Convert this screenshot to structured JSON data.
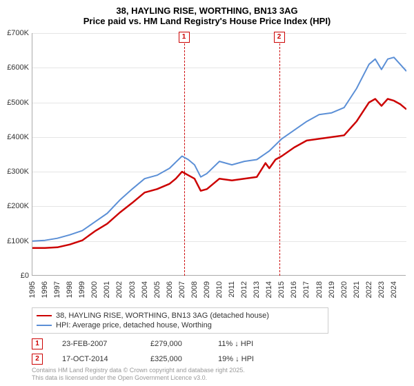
{
  "title_line1": "38, HAYLING RISE, WORTHING, BN13 3AG",
  "title_line2": "Price paid vs. HM Land Registry's House Price Index (HPI)",
  "chart": {
    "type": "line",
    "background_color": "#ffffff",
    "grid_color": "#e5e5e5",
    "axis_color": "#aaaaaa",
    "ylim": [
      0,
      700000
    ],
    "ytick_step": 100000,
    "ytick_labels": [
      "£0",
      "£100K",
      "£200K",
      "£300K",
      "£400K",
      "£500K",
      "£600K",
      "£700K"
    ],
    "xrange": [
      1995,
      2025
    ],
    "xticks": [
      1995,
      1996,
      1997,
      1998,
      1999,
      2000,
      2001,
      2002,
      2003,
      2004,
      2005,
      2006,
      2007,
      2008,
      2009,
      2010,
      2011,
      2012,
      2013,
      2014,
      2015,
      2016,
      2017,
      2018,
      2019,
      2020,
      2021,
      2022,
      2023,
      2024
    ],
    "title_fontsize": 13,
    "label_fontsize": 11,
    "series": [
      {
        "name": "price_paid",
        "label": "38, HAYLING RISE, WORTHING, BN13 3AG (detached house)",
        "color": "#cc0000",
        "line_width": 2.5,
        "x": [
          1995,
          1996,
          1997,
          1998,
          1999,
          2000,
          2001,
          2002,
          2003,
          2004,
          2005,
          2006,
          2006.5,
          2007,
          2007.5,
          2008,
          2008.5,
          2009,
          2010,
          2011,
          2012,
          2013,
          2013.7,
          2014,
          2014.5,
          2015,
          2016,
          2017,
          2018,
          2019,
          2020,
          2021,
          2022,
          2022.5,
          2023,
          2023.5,
          2024,
          2024.5,
          2025
        ],
        "y": [
          80000,
          80000,
          82000,
          90000,
          102000,
          128000,
          150000,
          182000,
          210000,
          240000,
          250000,
          265000,
          280000,
          300000,
          290000,
          280000,
          245000,
          250000,
          280000,
          275000,
          280000,
          285000,
          325000,
          310000,
          335000,
          345000,
          370000,
          390000,
          395000,
          400000,
          405000,
          445000,
          500000,
          510000,
          490000,
          510000,
          505000,
          495000,
          480000
        ]
      },
      {
        "name": "hpi",
        "label": "HPI: Average price, detached house, Worthing",
        "color": "#5b8fd6",
        "line_width": 2,
        "x": [
          1995,
          1996,
          1997,
          1998,
          1999,
          2000,
          2001,
          2002,
          2003,
          2004,
          2005,
          2006,
          2007,
          2007.5,
          2008,
          2008.5,
          2009,
          2010,
          2011,
          2012,
          2013,
          2014,
          2015,
          2016,
          2017,
          2018,
          2019,
          2020,
          2021,
          2022,
          2022.5,
          2023,
          2023.5,
          2024,
          2024.5,
          2025
        ],
        "y": [
          100000,
          102000,
          108000,
          118000,
          130000,
          155000,
          180000,
          218000,
          250000,
          280000,
          290000,
          310000,
          345000,
          335000,
          320000,
          285000,
          295000,
          330000,
          320000,
          330000,
          335000,
          360000,
          395000,
          420000,
          445000,
          465000,
          470000,
          485000,
          540000,
          610000,
          625000,
          595000,
          625000,
          630000,
          610000,
          590000
        ]
      }
    ],
    "markers": [
      {
        "id": "1",
        "x": 2007.15
      },
      {
        "id": "2",
        "x": 2014.79
      }
    ],
    "marker_color": "#cc0000",
    "marker_line_dash": "4,3"
  },
  "legend": {
    "border_color": "#cccccc",
    "items": [
      {
        "color": "#cc0000",
        "width": 2.5,
        "label": "38, HAYLING RISE, WORTHING, BN13 3AG (detached house)"
      },
      {
        "color": "#5b8fd6",
        "width": 2,
        "label": "HPI: Average price, detached house, Worthing"
      }
    ]
  },
  "sales": [
    {
      "marker": "1",
      "date": "23-FEB-2007",
      "price": "£279,000",
      "diff": "11% ↓ HPI"
    },
    {
      "marker": "2",
      "date": "17-OCT-2014",
      "price": "£325,000",
      "diff": "19% ↓ HPI"
    }
  ],
  "footer_line1": "Contains HM Land Registry data © Crown copyright and database right 2025.",
  "footer_line2": "This data is licensed under the Open Government Licence v3.0."
}
